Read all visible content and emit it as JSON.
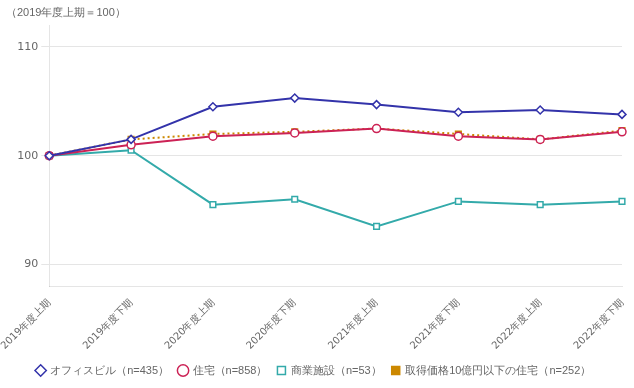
{
  "chart_data": {
    "type": "line",
    "subtitle": "（2019年度上期＝100）",
    "categories": [
      "2019年度上期",
      "2019年度下期",
      "2020年度上期",
      "2020年度下期",
      "2021年度上期",
      "2021年度下期",
      "2022年度上期",
      "2022年度下期"
    ],
    "series": [
      {
        "name": "オフィスビル（n=435）",
        "color": "#3333aa",
        "marker": "diamond",
        "line_style": "solid",
        "values": [
          100,
          101.5,
          104.5,
          105.3,
          104.7,
          104.0,
          104.2,
          103.8
        ]
      },
      {
        "name": "住宅（n=858）",
        "color": "#cc2255",
        "marker": "circle",
        "line_style": "solid",
        "values": [
          100,
          101.0,
          101.8,
          102.1,
          102.5,
          101.8,
          101.5,
          102.2
        ]
      },
      {
        "name": "商業施設（n=53）",
        "color": "#33aaaa",
        "marker": "square",
        "line_style": "solid",
        "values": [
          100,
          100.5,
          95.5,
          96.0,
          93.5,
          95.8,
          95.5,
          95.8
        ]
      },
      {
        "name": "取得価格10億円以下の住宅（n=252）",
        "color": "#cc8800",
        "marker": "square",
        "line_style": "dotted",
        "values": [
          100,
          101.5,
          102.0,
          102.2,
          102.5,
          102.0,
          101.5,
          102.3
        ]
      }
    ],
    "ylim": [
      88,
      112
    ],
    "yticks": [
      90,
      100,
      110
    ],
    "grid": true,
    "legend": "bottom"
  }
}
